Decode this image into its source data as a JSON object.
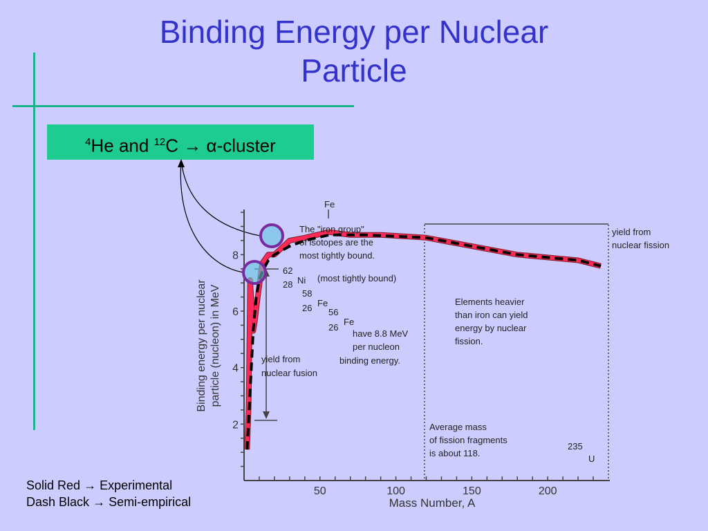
{
  "slide": {
    "title_line1": "Binding Energy per Nuclear",
    "title_line2": "Particle",
    "callout": {
      "he": "He and",
      "he_mass": "4",
      "c": "C",
      "c_mass": "12",
      "arrow": "→",
      "alpha": "α",
      "rest": "-cluster"
    },
    "legend": {
      "line1_a": "Solid Red",
      "line1_b": "Experimental",
      "line2_a": "Dash Black",
      "line2_b": "Semi-empirical",
      "arrow": "→"
    },
    "colors": {
      "title": "#3333cc",
      "background": "#ccccff",
      "accent": "#19b38c",
      "callout_bg": "#1fcc90",
      "circle": "#7a2a9e"
    }
  },
  "chart_data": {
    "type": "line",
    "xlabel": "Mass Number, A",
    "ylabel_line1": "Binding energy per nuclear",
    "ylabel_line2": "particle (nucleon) in MeV",
    "xlim": [
      0,
      240
    ],
    "ylim": [
      0,
      9.6
    ],
    "x_ticks": [
      50,
      100,
      150,
      200
    ],
    "y_ticks": [
      2,
      4,
      6,
      8
    ],
    "series": [
      {
        "name": "Experimental",
        "style": "solid",
        "color": "#ff2a55",
        "x": [
          2,
          3,
          4,
          6,
          7,
          9,
          12,
          16,
          20,
          30,
          40,
          56,
          70,
          90,
          120,
          150,
          180,
          200,
          220,
          235
        ],
        "y": [
          1.1,
          2.6,
          7.1,
          5.3,
          5.6,
          6.5,
          7.7,
          8.0,
          8.0,
          8.5,
          8.6,
          8.8,
          8.7,
          8.7,
          8.6,
          8.3,
          8.0,
          7.9,
          7.8,
          7.6
        ]
      },
      {
        "name": "Semi-empirical",
        "style": "dashed",
        "color": "#000000",
        "x": [
          2,
          4,
          6,
          8,
          10,
          12,
          16,
          20,
          30,
          40,
          56,
          80,
          120,
          150,
          180,
          200,
          220,
          235
        ],
        "y": [
          1.1,
          3.2,
          5.3,
          6.5,
          7.1,
          7.4,
          7.8,
          8.0,
          8.3,
          8.5,
          8.7,
          8.7,
          8.6,
          8.3,
          8.0,
          7.9,
          7.8,
          7.6
        ]
      }
    ],
    "annotations": {
      "fe_peak": "Fe",
      "iron_group": [
        "The \"iron group\"",
        "of isotopes are the",
        "most tightly bound."
      ],
      "ni_sup": "62",
      "ni_sub": "28",
      "ni_sym": "Ni",
      "ni_note": "(most tightly bound)",
      "fe58_sup": "58",
      "fe58_sub": "26",
      "fe58_sym": "Fe",
      "fe56_sup": "56",
      "fe56_sub": "26",
      "fe56_sym": "Fe",
      "fe_note": [
        "have 8.8 MeV",
        "per nucleon",
        "binding energy."
      ],
      "fusion": [
        "yield from",
        "nuclear fusion"
      ],
      "fission": [
        "yield from",
        "nuclear fission"
      ],
      "heavier": [
        "Elements heavier",
        "than iron can yield",
        "energy by nuclear",
        "fission."
      ],
      "avg_mass": [
        "Average mass",
        "of fission fragments",
        "is about 118."
      ],
      "u_sup": "235",
      "u_sym": "U"
    }
  }
}
